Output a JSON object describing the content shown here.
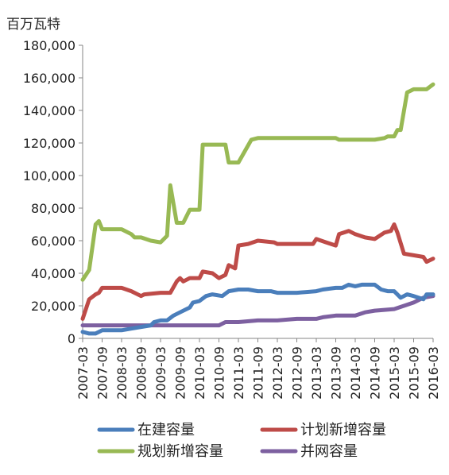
{
  "chart_data": {
    "type": "line",
    "unit_label": "百万瓦特",
    "ylim": [
      0,
      180000
    ],
    "y_ticks": [
      0,
      20000,
      40000,
      60000,
      80000,
      100000,
      120000,
      140000,
      160000,
      180000
    ],
    "y_tick_labels": [
      "0",
      "20,000",
      "40,000",
      "60,000",
      "80,000",
      "100,000",
      "120,000",
      "140,000",
      "160,000",
      "180,000"
    ],
    "x_tick_labels": [
      "2007-03",
      "2007-09",
      "2008-03",
      "2008-09",
      "2009-03",
      "2009-09",
      "2010-03",
      "2010-09",
      "2011-03",
      "2011-09",
      "2012-03",
      "2012-09",
      "2013-03",
      "2013-09",
      "2014-03",
      "2014-09",
      "2015-03",
      "2015-09",
      "2016-03"
    ],
    "x_range": [
      "2007-03",
      "2016-03"
    ],
    "grid": false,
    "legend_position": "bottom",
    "series": [
      {
        "name": "在建容量",
        "color": "#4a7ebb",
        "points": [
          [
            "2007-03",
            4000
          ],
          [
            "2007-05",
            3000
          ],
          [
            "2007-07",
            3000
          ],
          [
            "2007-09",
            5000
          ],
          [
            "2008-03",
            5000
          ],
          [
            "2008-06",
            6000
          ],
          [
            "2008-09",
            7000
          ],
          [
            "2008-12",
            8000
          ],
          [
            "2009-01",
            10000
          ],
          [
            "2009-03",
            11000
          ],
          [
            "2009-05",
            11000
          ],
          [
            "2009-07",
            14000
          ],
          [
            "2009-09",
            16000
          ],
          [
            "2009-12",
            19000
          ],
          [
            "2010-01",
            22000
          ],
          [
            "2010-03",
            23000
          ],
          [
            "2010-05",
            26000
          ],
          [
            "2010-07",
            27000
          ],
          [
            "2010-10",
            26000
          ],
          [
            "2010-12",
            29000
          ],
          [
            "2011-03",
            30000
          ],
          [
            "2011-06",
            30000
          ],
          [
            "2011-09",
            29000
          ],
          [
            "2012-01",
            29000
          ],
          [
            "2012-03",
            28000
          ],
          [
            "2012-09",
            28000
          ],
          [
            "2013-03",
            29000
          ],
          [
            "2013-05",
            30000
          ],
          [
            "2013-09",
            31000
          ],
          [
            "2013-11",
            31000
          ],
          [
            "2014-01",
            33000
          ],
          [
            "2014-03",
            32000
          ],
          [
            "2014-05",
            33000
          ],
          [
            "2014-09",
            33000
          ],
          [
            "2014-11",
            30000
          ],
          [
            "2015-01",
            29000
          ],
          [
            "2015-03",
            29000
          ],
          [
            "2015-05",
            25000
          ],
          [
            "2015-07",
            27000
          ],
          [
            "2015-09",
            26000
          ],
          [
            "2015-12",
            24000
          ],
          [
            "2016-01",
            27000
          ],
          [
            "2016-03",
            27000
          ]
        ]
      },
      {
        "name": "计划新增容量",
        "color": "#be4b48",
        "points": [
          [
            "2007-03",
            12000
          ],
          [
            "2007-05",
            24000
          ],
          [
            "2007-07",
            27000
          ],
          [
            "2007-08",
            28000
          ],
          [
            "2007-09",
            31000
          ],
          [
            "2008-03",
            31000
          ],
          [
            "2008-06",
            29000
          ],
          [
            "2008-09",
            26000
          ],
          [
            "2008-10",
            27000
          ],
          [
            "2009-03",
            28000
          ],
          [
            "2009-06",
            28000
          ],
          [
            "2009-08",
            35000
          ],
          [
            "2009-09",
            37000
          ],
          [
            "2009-10",
            35000
          ],
          [
            "2009-12",
            37000
          ],
          [
            "2010-03",
            37000
          ],
          [
            "2010-04",
            41000
          ],
          [
            "2010-07",
            40000
          ],
          [
            "2010-09",
            37000
          ],
          [
            "2010-11",
            39000
          ],
          [
            "2010-12",
            45000
          ],
          [
            "2011-02",
            43000
          ],
          [
            "2011-03",
            57000
          ],
          [
            "2011-06",
            58000
          ],
          [
            "2011-09",
            60000
          ],
          [
            "2012-02",
            59000
          ],
          [
            "2012-03",
            58000
          ],
          [
            "2012-09",
            58000
          ],
          [
            "2013-02",
            58000
          ],
          [
            "2013-03",
            61000
          ],
          [
            "2013-06",
            59000
          ],
          [
            "2013-09",
            57000
          ],
          [
            "2013-10",
            64000
          ],
          [
            "2014-01",
            66000
          ],
          [
            "2014-03",
            64000
          ],
          [
            "2014-06",
            62000
          ],
          [
            "2014-09",
            61000
          ],
          [
            "2014-12",
            65000
          ],
          [
            "2015-02",
            66000
          ],
          [
            "2015-03",
            70000
          ],
          [
            "2015-04",
            65000
          ],
          [
            "2015-06",
            52000
          ],
          [
            "2015-09",
            51000
          ],
          [
            "2015-12",
            50000
          ],
          [
            "2016-01",
            47000
          ],
          [
            "2016-03",
            49000
          ]
        ]
      },
      {
        "name": "规划新增容量",
        "color": "#98b954",
        "points": [
          [
            "2007-03",
            36000
          ],
          [
            "2007-05",
            42000
          ],
          [
            "2007-07",
            70000
          ],
          [
            "2007-08",
            72000
          ],
          [
            "2007-09",
            67000
          ],
          [
            "2008-03",
            67000
          ],
          [
            "2008-06",
            64000
          ],
          [
            "2008-07",
            62000
          ],
          [
            "2008-09",
            62000
          ],
          [
            "2008-12",
            60000
          ],
          [
            "2009-03",
            59000
          ],
          [
            "2009-05",
            63000
          ],
          [
            "2009-06",
            94000
          ],
          [
            "2009-08",
            71000
          ],
          [
            "2009-10",
            71000
          ],
          [
            "2009-12",
            79000
          ],
          [
            "2010-03",
            79000
          ],
          [
            "2010-04",
            119000
          ],
          [
            "2010-09",
            119000
          ],
          [
            "2010-11",
            119000
          ],
          [
            "2010-12",
            108000
          ],
          [
            "2011-03",
            108000
          ],
          [
            "2011-07",
            122000
          ],
          [
            "2011-09",
            123000
          ],
          [
            "2012-03",
            123000
          ],
          [
            "2012-09",
            123000
          ],
          [
            "2013-03",
            123000
          ],
          [
            "2013-09",
            123000
          ],
          [
            "2013-10",
            122000
          ],
          [
            "2014-03",
            122000
          ],
          [
            "2014-09",
            122000
          ],
          [
            "2014-12",
            123000
          ],
          [
            "2015-01",
            124000
          ],
          [
            "2015-03",
            124000
          ],
          [
            "2015-04",
            128000
          ],
          [
            "2015-05",
            128000
          ],
          [
            "2015-07",
            151000
          ],
          [
            "2015-09",
            153000
          ],
          [
            "2015-12",
            153000
          ],
          [
            "2016-01",
            153000
          ],
          [
            "2016-03",
            156000
          ]
        ]
      },
      {
        "name": "并网容量",
        "color": "#7d60a0",
        "points": [
          [
            "2007-03",
            8000
          ],
          [
            "2007-09",
            8000
          ],
          [
            "2008-03",
            8000
          ],
          [
            "2008-09",
            8000
          ],
          [
            "2009-03",
            8000
          ],
          [
            "2009-09",
            8000
          ],
          [
            "2010-03",
            8000
          ],
          [
            "2010-09",
            8000
          ],
          [
            "2010-11",
            10000
          ],
          [
            "2011-03",
            10000
          ],
          [
            "2011-09",
            11000
          ],
          [
            "2012-03",
            11000
          ],
          [
            "2012-09",
            12000
          ],
          [
            "2013-03",
            12000
          ],
          [
            "2013-05",
            13000
          ],
          [
            "2013-09",
            14000
          ],
          [
            "2014-03",
            14000
          ],
          [
            "2014-06",
            16000
          ],
          [
            "2014-09",
            17000
          ],
          [
            "2015-03",
            18000
          ],
          [
            "2015-06",
            20000
          ],
          [
            "2015-09",
            22000
          ],
          [
            "2015-12",
            25000
          ],
          [
            "2016-03",
            26000
          ]
        ]
      }
    ]
  }
}
